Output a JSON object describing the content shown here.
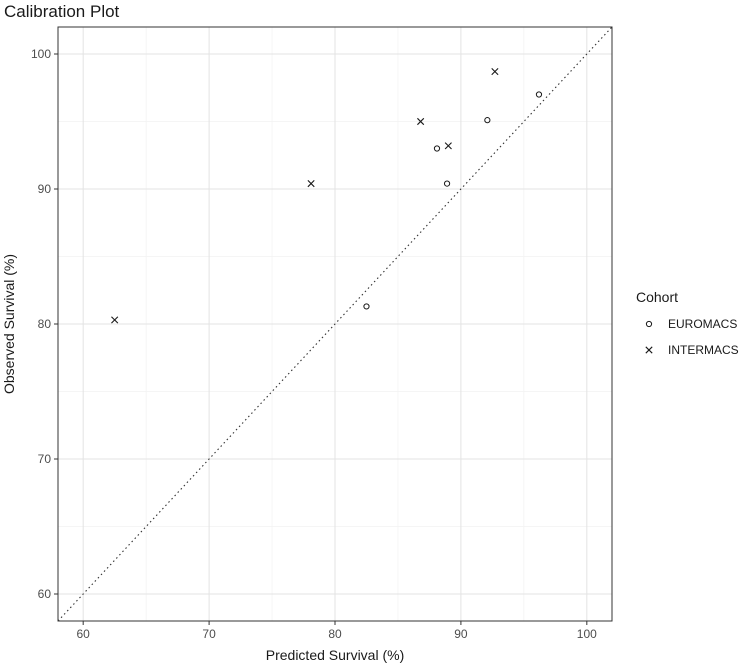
{
  "chart_data": {
    "type": "scatter",
    "title": "Calibration Plot",
    "xlabel": "Predicted Survival (%)",
    "ylabel": "Observed Survival (%)",
    "xlim": [
      58,
      102
    ],
    "ylim": [
      58,
      102
    ],
    "x_ticks": [
      60,
      70,
      80,
      90,
      100
    ],
    "y_ticks": [
      60,
      70,
      80,
      90,
      100
    ],
    "grid": true,
    "reference_line": "y = x (dotted)",
    "legend": {
      "title": "Cohort",
      "position": "right"
    },
    "series": [
      {
        "name": "EUROMACS",
        "marker": "circle",
        "points": [
          {
            "x": 82.5,
            "y": 81.3
          },
          {
            "x": 88.1,
            "y": 93.0
          },
          {
            "x": 88.9,
            "y": 90.4
          },
          {
            "x": 92.1,
            "y": 95.1
          },
          {
            "x": 96.2,
            "y": 97.0
          }
        ]
      },
      {
        "name": "INTERMACS",
        "marker": "cross",
        "points": [
          {
            "x": 62.5,
            "y": 80.3
          },
          {
            "x": 78.1,
            "y": 90.4
          },
          {
            "x": 86.8,
            "y": 95.0
          },
          {
            "x": 89.0,
            "y": 93.2
          },
          {
            "x": 92.7,
            "y": 98.7
          }
        ]
      }
    ],
    "colors": {
      "marker": "#1a1a1a",
      "panel_border": "#333333",
      "grid": "#e3e3e3"
    }
  }
}
